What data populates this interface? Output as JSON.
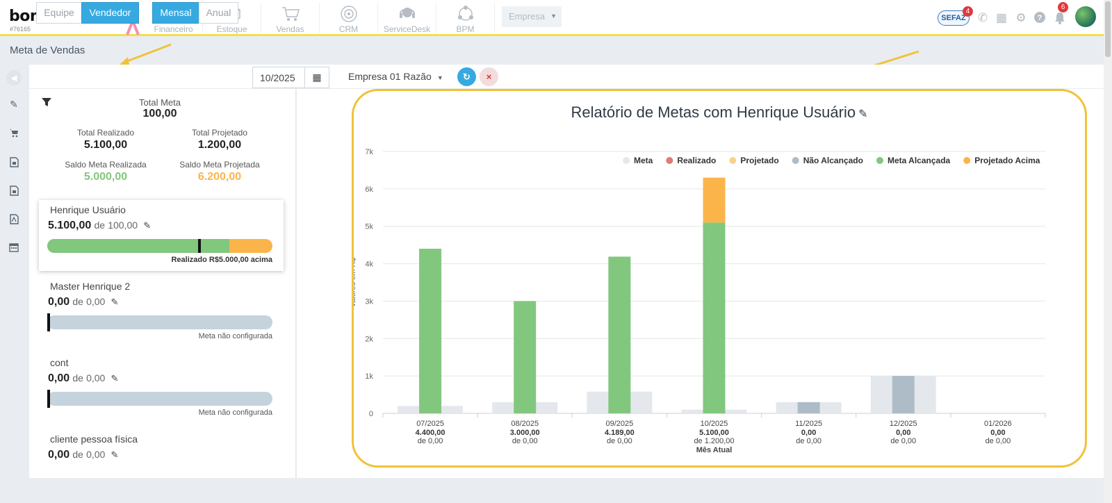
{
  "app": {
    "logo": "bomControle",
    "account_id": "#76165",
    "modules": [
      {
        "label": "Financeiro",
        "icon": "dollar-coin-icon"
      },
      {
        "label": "Estoque",
        "icon": "box-icon"
      },
      {
        "label": "Vendas",
        "icon": "cart-icon"
      },
      {
        "label": "CRM",
        "icon": "target-icon"
      },
      {
        "label": "ServiceDesk",
        "icon": "headset-icon"
      },
      {
        "label": "BPM",
        "icon": "network-icon"
      }
    ],
    "empresa_select": "Empresa",
    "sefaz": "SEFAZ",
    "sefaz_badge": "4",
    "notif_badge": "6"
  },
  "page": {
    "title": "Meta de Vendas"
  },
  "filters": {
    "group_options": [
      "Equipe",
      "Vendedor"
    ],
    "group_selected": "Vendedor",
    "period_options": [
      "Mensal",
      "Anual"
    ],
    "period_selected": "Mensal",
    "date": "10/2025",
    "company": "Empresa 01 Razão"
  },
  "summary": {
    "total_meta_label": "Total Meta",
    "total_meta": "100,00",
    "total_realizado_label": "Total Realizado",
    "total_realizado": "5.100,00",
    "total_projetado_label": "Total Projetado",
    "total_projetado": "1.200,00",
    "saldo_realizada_label": "Saldo Meta Realizada",
    "saldo_realizada": "5.000,00",
    "saldo_projetada_label": "Saldo Meta Projetada",
    "saldo_projetada": "6.200,00",
    "colors": {
      "realizada": "#82c77e",
      "projetada": "#fbb44a"
    }
  },
  "sellers": [
    {
      "name": "Henrique Usuário",
      "value": "5.100,00",
      "de": "de",
      "meta": "100,00",
      "note": "Realizado R$5.000,00 acima",
      "realizado_fraction": 0.81,
      "projected_fraction": 1.0,
      "marker_fraction": 0.67
    },
    {
      "name": "Master Henrique 2",
      "value": "0,00",
      "de": "de",
      "meta": "0,00",
      "note": "Meta não configurada"
    },
    {
      "name": "cont",
      "value": "0,00",
      "de": "de",
      "meta": "0,00",
      "note": "Meta não configurada"
    },
    {
      "name": "cliente pessoa física",
      "value": "0,00",
      "de": "de",
      "meta": "0,00"
    }
  ],
  "chart_data": {
    "type": "bar",
    "title": "Relatório de Metas com Henrique Usuário",
    "ylabel": "Valores em R$",
    "ylim": [
      0,
      7000
    ],
    "yticks": [
      "0",
      "1k",
      "2k",
      "3k",
      "4k",
      "5k",
      "6k",
      "7k"
    ],
    "legend_position": "top-right",
    "legend": [
      {
        "name": "Meta",
        "color": "#e4e8ec"
      },
      {
        "name": "Realizado",
        "color": "#e07b6e"
      },
      {
        "name": "Projetado",
        "color": "#f9d28f"
      },
      {
        "name": "Não Alcançado",
        "color": "#adbcc6"
      },
      {
        "name": "Meta Alcançada",
        "color": "#82c77e"
      },
      {
        "name": "Projetado Acima",
        "color": "#fbb44a"
      }
    ],
    "categories": [
      "07/2025",
      "08/2025",
      "09/2025",
      "10/2025",
      "11/2025",
      "12/2025",
      "01/2026"
    ],
    "category_values": [
      "4.400,00",
      "3.000,00",
      "4.189,00",
      "5.100,00",
      "0,00",
      "0,00",
      "0,00"
    ],
    "category_sub": [
      "de 0,00",
      "de 0,00",
      "de 0,00",
      "de 1.200,00",
      "de 0,00",
      "de 0,00",
      "de 0,00"
    ],
    "current_month_label": "Mês Atual",
    "current_month_index": 3,
    "series": [
      {
        "name": "Meta",
        "values": [
          200,
          300,
          580,
          100,
          300,
          1000,
          0
        ]
      },
      {
        "name": "Meta Alcançada",
        "values": [
          4400,
          3000,
          4189,
          5100,
          0,
          0,
          0
        ]
      },
      {
        "name": "Projetado Acima",
        "values": [
          0,
          0,
          0,
          1200,
          0,
          0,
          0
        ]
      },
      {
        "name": "Não Alcançado",
        "values": [
          0,
          0,
          0,
          0,
          300,
          1000,
          0
        ]
      }
    ]
  }
}
